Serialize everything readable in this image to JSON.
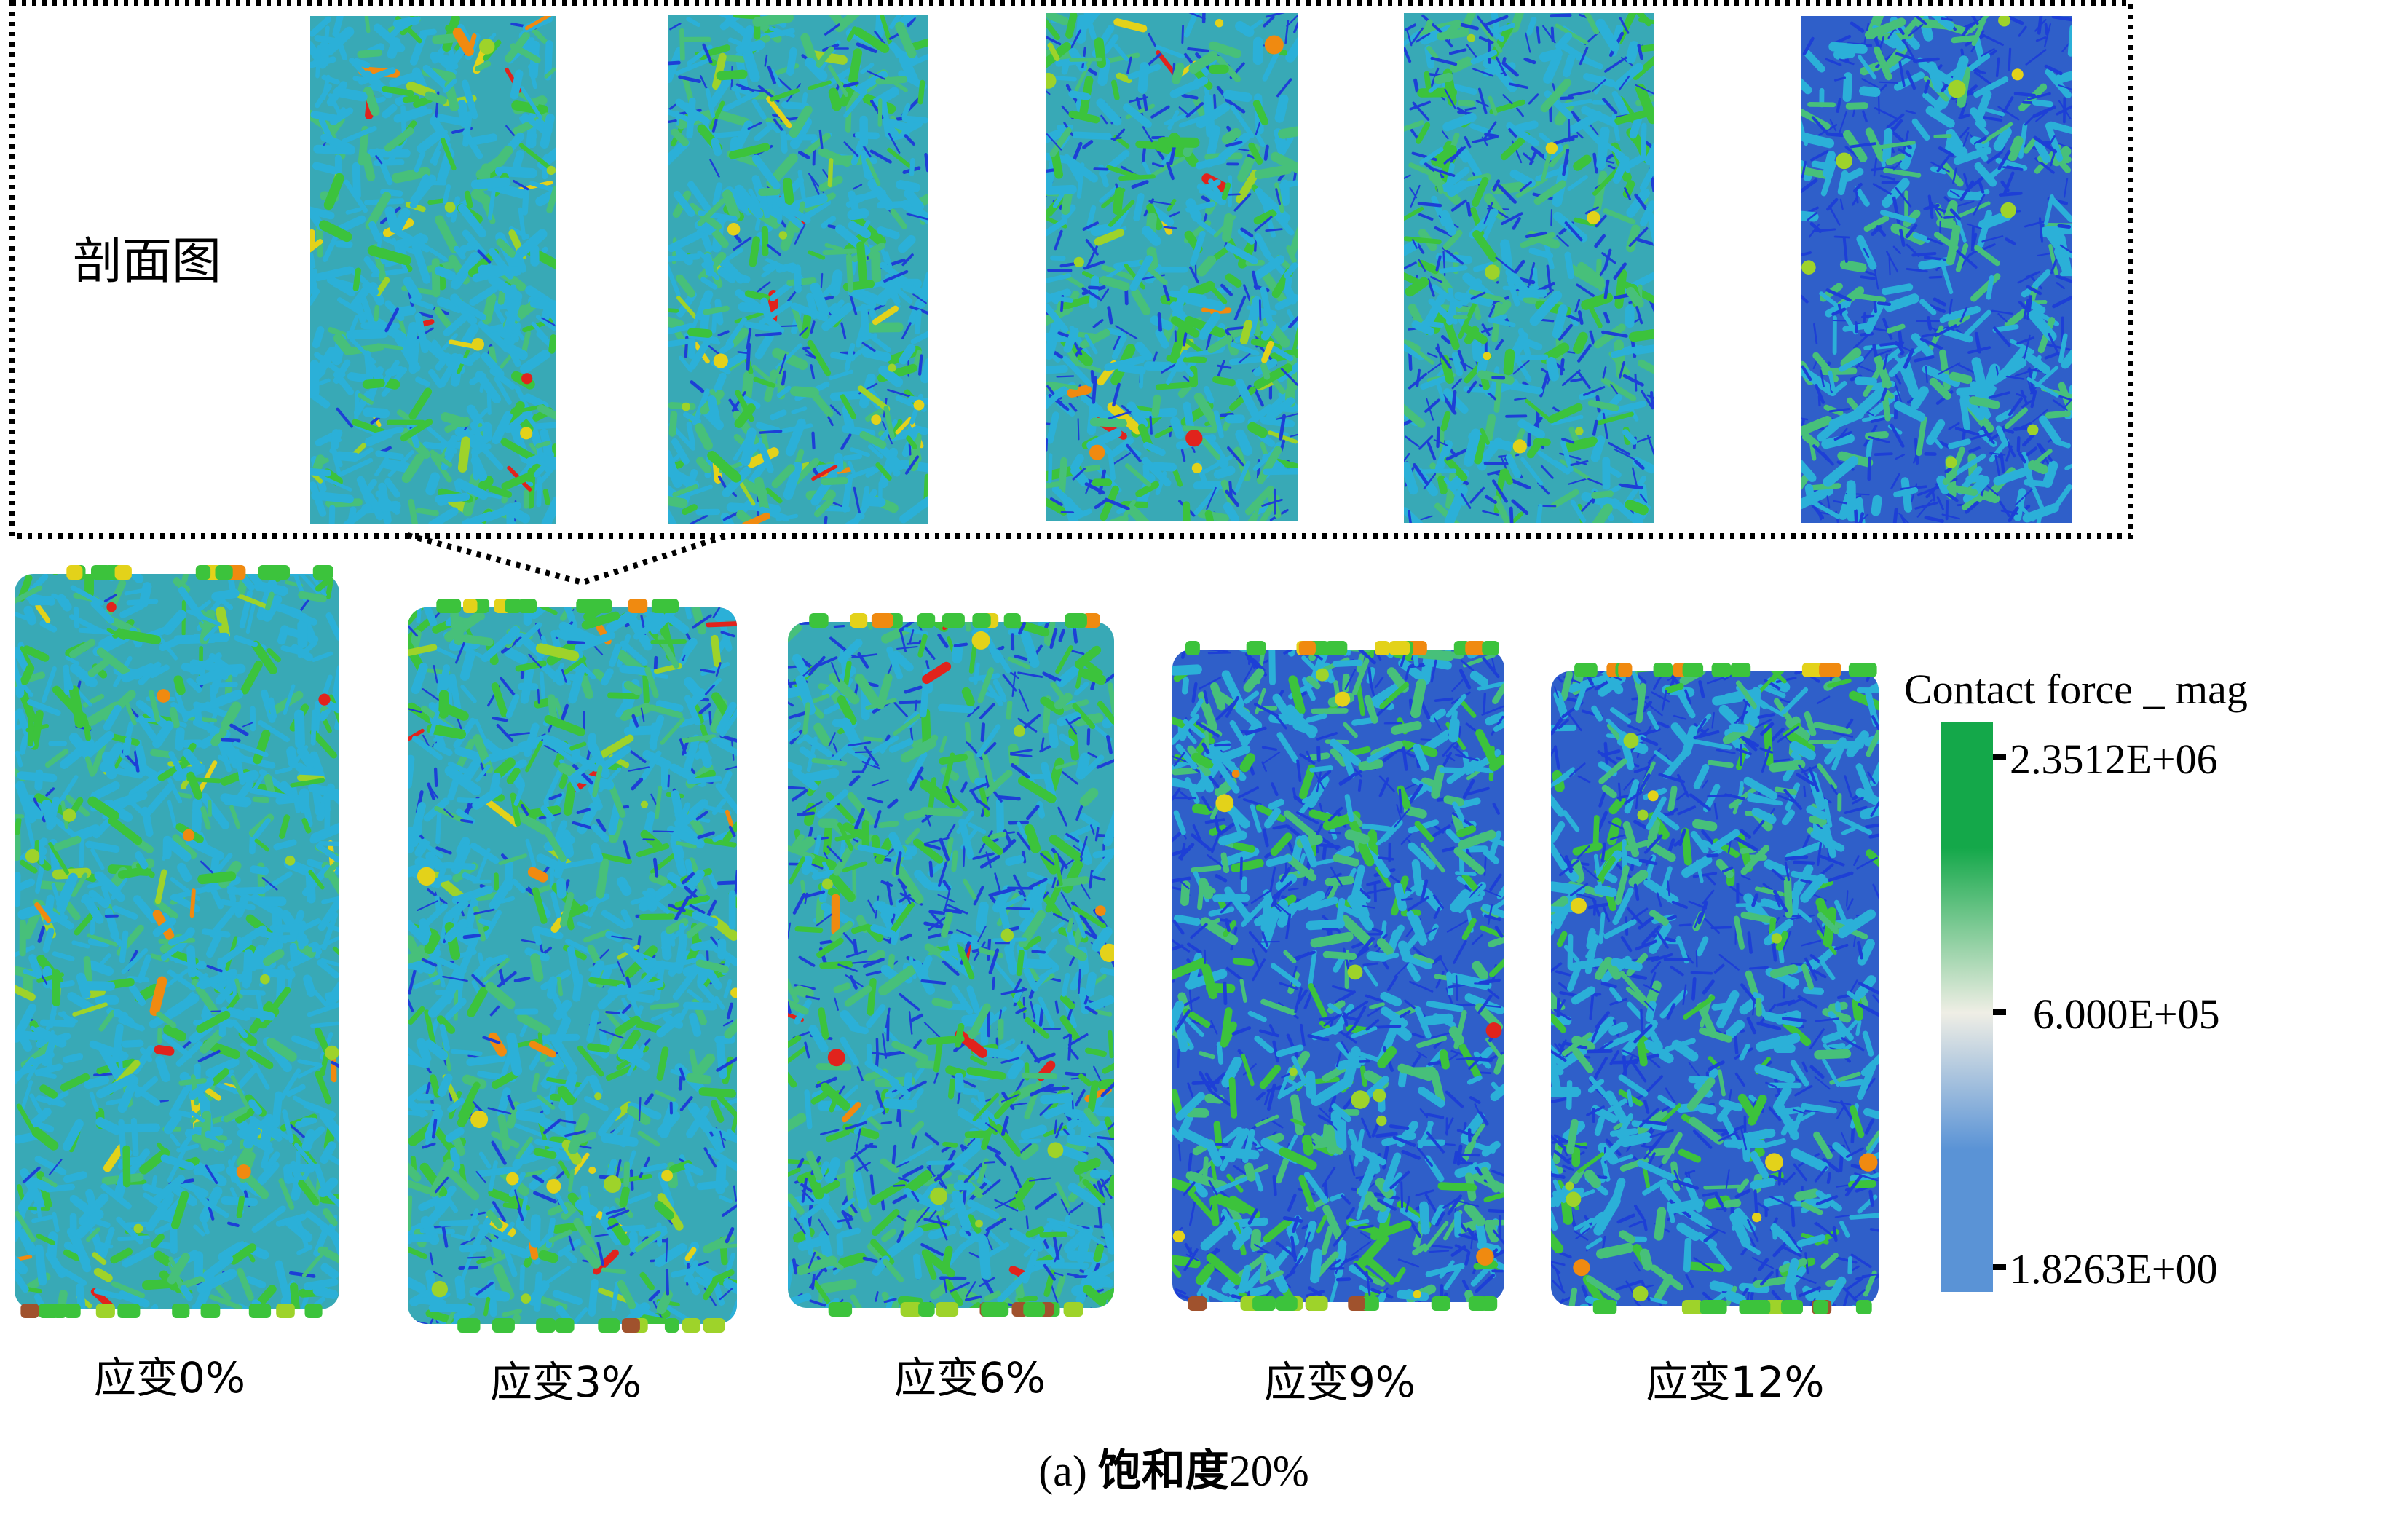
{
  "section_view_label": "剖面图",
  "strain_labels": [
    "应变0%",
    "应变3%",
    "应变6%",
    "应变9%",
    "应变12%"
  ],
  "caption": {
    "prefix": "(a) ",
    "name": "饱和度",
    "value": "20%"
  },
  "colorbar": {
    "title": "Contact force _ mag",
    "max_label": "2.3512E+06",
    "mid_label": "6.000E+05",
    "min_label": "1.8263E+00",
    "max_value": 2351200,
    "mid_value": 600000,
    "min_value": 1.8263,
    "colors": {
      "high": "#14a84a",
      "mid": "#efeee5",
      "low": "#5a93d6"
    }
  },
  "contact_palette": {
    "blue": "#1d3fd6",
    "cyan": "#2bb0d8",
    "light_green": "#47c07a",
    "green": "#3cc33c",
    "yellow_green": "#9ed32a",
    "yellow": "#e3d21a",
    "orange": "#f08a10",
    "red": "#e1231c"
  }
}
